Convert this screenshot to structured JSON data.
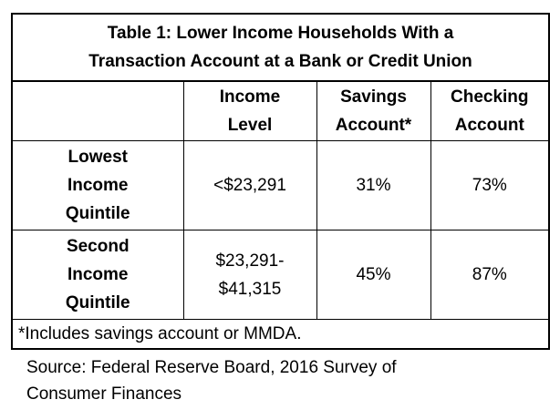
{
  "table": {
    "title_line1": "Table 1:  Lower Income Households With a",
    "title_line2": "Transaction Account at a Bank or Credit Union",
    "headers": {
      "corner": "",
      "income_line1": "Income",
      "income_line2": "Level",
      "savings_line1": "Savings",
      "savings_line2": "Account*",
      "checking_line1": "Checking",
      "checking_line2": "Account"
    },
    "rows": [
      {
        "label_line1": "Lowest",
        "label_line2": "Income",
        "label_line3": "Quintile",
        "income_line1": "<$23,291",
        "income_line2": "",
        "savings": "31%",
        "checking": "73%"
      },
      {
        "label_line1": "Second",
        "label_line2": "Income",
        "label_line3": "Quintile",
        "income_line1": "$23,291-",
        "income_line2": "$41,315",
        "savings": "45%",
        "checking": "87%"
      }
    ],
    "note": "*Includes savings account or MMDA."
  },
  "source": {
    "line1": "Source: Federal Reserve Board, 2016 Survey of",
    "line2": "Consumer Finances"
  }
}
